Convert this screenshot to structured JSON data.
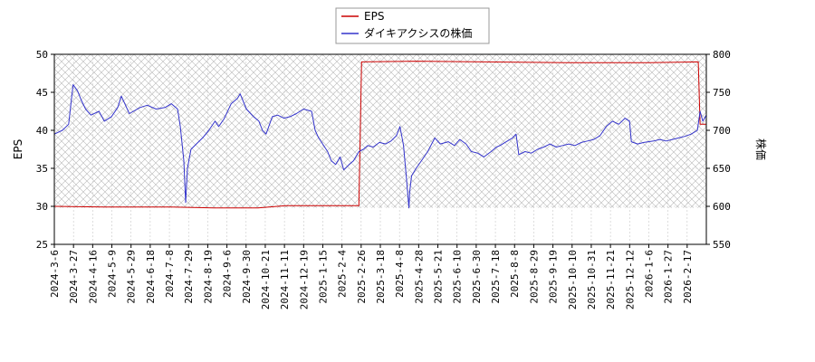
{
  "chart_data": {
    "type": "line",
    "title": "",
    "legend": {
      "placement": "top-center",
      "entries": [
        {
          "name": "EPS",
          "color": "#cc0000"
        },
        {
          "name": "ダイキアクシスの株価",
          "color": "#3333cc"
        }
      ]
    },
    "left_axis": {
      "label": "EPS",
      "min": 25,
      "max": 50,
      "ticks": [
        25,
        30,
        35,
        40,
        45,
        50
      ]
    },
    "right_axis": {
      "label": "株価",
      "min": 550,
      "max": 800,
      "ticks": [
        550,
        600,
        650,
        700,
        750,
        800
      ]
    },
    "x_axis": {
      "start": "2024-03-06",
      "end": "2026-03-06",
      "tick_labels": [
        "2024-3-6",
        "2024-3-27",
        "2024-4-16",
        "2024-5-9",
        "2024-5-29",
        "2024-6-18",
        "2024-7-8",
        "2024-7-29",
        "2024-8-19",
        "2024-9-6",
        "2024-9-30",
        "2024-10-21",
        "2024-11-11",
        "2024-12-19",
        "2025-1-15",
        "2025-2-4",
        "2025-2-26",
        "2025-3-18",
        "2025-4-8",
        "2025-4-28",
        "2025-5-21",
        "2025-6-10",
        "2025-6-30",
        "2025-7-18",
        "2025-8-8",
        "2025-8-29",
        "2025-9-19",
        "2025-10-10",
        "2025-10-31",
        "2025-11-21",
        "2025-12-12",
        "2026-1-6",
        "2026-1-27",
        "2026-2-17"
      ]
    },
    "grid": true,
    "hatched_region": {
      "series": "EPS"
    },
    "series": [
      {
        "name": "EPS",
        "axis": "left",
        "color": "#cc0000",
        "points": [
          [
            "2024-03-06",
            30.0
          ],
          [
            "2024-05-01",
            29.9
          ],
          [
            "2024-07-15",
            29.9
          ],
          [
            "2024-09-01",
            29.8
          ],
          [
            "2024-10-20",
            29.8
          ],
          [
            "2024-11-20",
            30.1
          ],
          [
            "2024-12-25",
            30.1
          ],
          [
            "2025-02-10",
            30.1
          ],
          [
            "2025-02-13",
            49.0
          ],
          [
            "2025-04-15",
            49.1
          ],
          [
            "2025-07-01",
            49.0
          ],
          [
            "2025-10-01",
            48.9
          ],
          [
            "2026-01-01",
            48.9
          ],
          [
            "2026-02-25",
            49.0
          ],
          [
            "2026-02-27",
            40.8
          ],
          [
            "2026-03-06",
            40.8
          ]
        ]
      },
      {
        "name": "ダイキアクシスの株価",
        "axis": "right",
        "color": "#3333cc",
        "points": [
          [
            "2024-03-06",
            695
          ],
          [
            "2024-03-15",
            700
          ],
          [
            "2024-03-22",
            708
          ],
          [
            "2024-03-27",
            760
          ],
          [
            "2024-04-01",
            752
          ],
          [
            "2024-04-05",
            740
          ],
          [
            "2024-04-10",
            728
          ],
          [
            "2024-04-16",
            720
          ],
          [
            "2024-04-25",
            725
          ],
          [
            "2024-05-01",
            712
          ],
          [
            "2024-05-09",
            718
          ],
          [
            "2024-05-16",
            730
          ],
          [
            "2024-05-20",
            745
          ],
          [
            "2024-05-29",
            722
          ],
          [
            "2024-06-10",
            730
          ],
          [
            "2024-06-18",
            733
          ],
          [
            "2024-06-28",
            728
          ],
          [
            "2024-07-08",
            730
          ],
          [
            "2024-07-15",
            735
          ],
          [
            "2024-07-22",
            728
          ],
          [
            "2024-07-25",
            705
          ],
          [
            "2024-07-29",
            660
          ],
          [
            "2024-07-31",
            605
          ],
          [
            "2024-08-02",
            650
          ],
          [
            "2024-08-06",
            675
          ],
          [
            "2024-08-12",
            682
          ],
          [
            "2024-08-19",
            690
          ],
          [
            "2024-08-26",
            700
          ],
          [
            "2024-09-02",
            712
          ],
          [
            "2024-09-06",
            705
          ],
          [
            "2024-09-12",
            715
          ],
          [
            "2024-09-20",
            735
          ],
          [
            "2024-09-27",
            742
          ],
          [
            "2024-09-30",
            748
          ],
          [
            "2024-10-07",
            728
          ],
          [
            "2024-10-15",
            718
          ],
          [
            "2024-10-21",
            712
          ],
          [
            "2024-10-25",
            700
          ],
          [
            "2024-10-29",
            695
          ],
          [
            "2024-11-05",
            718
          ],
          [
            "2024-11-11",
            720
          ],
          [
            "2024-11-18",
            716
          ],
          [
            "2024-11-25",
            718
          ],
          [
            "2024-12-02",
            722
          ],
          [
            "2024-12-10",
            728
          ],
          [
            "2024-12-19",
            725
          ],
          [
            "2024-12-23",
            700
          ],
          [
            "2024-12-27",
            690
          ],
          [
            "2025-01-06",
            672
          ],
          [
            "2025-01-10",
            660
          ],
          [
            "2025-01-15",
            655
          ],
          [
            "2025-01-20",
            665
          ],
          [
            "2025-01-24",
            648
          ],
          [
            "2025-01-30",
            655
          ],
          [
            "2025-02-04",
            660
          ],
          [
            "2025-02-10",
            672
          ],
          [
            "2025-02-15",
            675
          ],
          [
            "2025-02-20",
            680
          ],
          [
            "2025-02-26",
            678
          ],
          [
            "2025-03-05",
            684
          ],
          [
            "2025-03-12",
            682
          ],
          [
            "2025-03-18",
            686
          ],
          [
            "2025-03-24",
            693
          ],
          [
            "2025-03-28",
            705
          ],
          [
            "2025-04-01",
            680
          ],
          [
            "2025-04-04",
            640
          ],
          [
            "2025-04-07",
            598
          ],
          [
            "2025-04-08",
            620
          ],
          [
            "2025-04-10",
            640
          ],
          [
            "2025-04-15",
            650
          ],
          [
            "2025-04-21",
            660
          ],
          [
            "2025-04-28",
            672
          ],
          [
            "2025-05-06",
            690
          ],
          [
            "2025-05-12",
            682
          ],
          [
            "2025-05-21",
            685
          ],
          [
            "2025-05-28",
            680
          ],
          [
            "2025-06-03",
            688
          ],
          [
            "2025-06-10",
            682
          ],
          [
            "2025-06-16",
            672
          ],
          [
            "2025-06-23",
            670
          ],
          [
            "2025-06-30",
            665
          ],
          [
            "2025-07-08",
            672
          ],
          [
            "2025-07-14",
            678
          ],
          [
            "2025-07-18",
            680
          ],
          [
            "2025-07-25",
            685
          ],
          [
            "2025-08-01",
            690
          ],
          [
            "2025-08-05",
            695
          ],
          [
            "2025-08-08",
            668
          ],
          [
            "2025-08-15",
            672
          ],
          [
            "2025-08-22",
            670
          ],
          [
            "2025-08-29",
            675
          ],
          [
            "2025-09-05",
            678
          ],
          [
            "2025-09-12",
            682
          ],
          [
            "2025-09-19",
            678
          ],
          [
            "2025-09-26",
            680
          ],
          [
            "2025-10-03",
            682
          ],
          [
            "2025-10-10",
            680
          ],
          [
            "2025-10-17",
            684
          ],
          [
            "2025-10-24",
            686
          ],
          [
            "2025-10-31",
            688
          ],
          [
            "2025-11-07",
            693
          ],
          [
            "2025-11-14",
            705
          ],
          [
            "2025-11-21",
            712
          ],
          [
            "2025-11-28",
            708
          ],
          [
            "2025-12-05",
            716
          ],
          [
            "2025-12-10",
            712
          ],
          [
            "2025-12-12",
            685
          ],
          [
            "2025-12-19",
            682
          ],
          [
            "2025-12-26",
            684
          ],
          [
            "2026-01-06",
            686
          ],
          [
            "2026-01-13",
            688
          ],
          [
            "2026-01-20",
            686
          ],
          [
            "2026-01-27",
            688
          ],
          [
            "2026-02-03",
            690
          ],
          [
            "2026-02-10",
            692
          ],
          [
            "2026-02-17",
            695
          ],
          [
            "2026-02-24",
            700
          ],
          [
            "2026-02-27",
            725
          ],
          [
            "2026-03-02",
            712
          ],
          [
            "2026-03-06",
            720
          ]
        ]
      }
    ]
  }
}
